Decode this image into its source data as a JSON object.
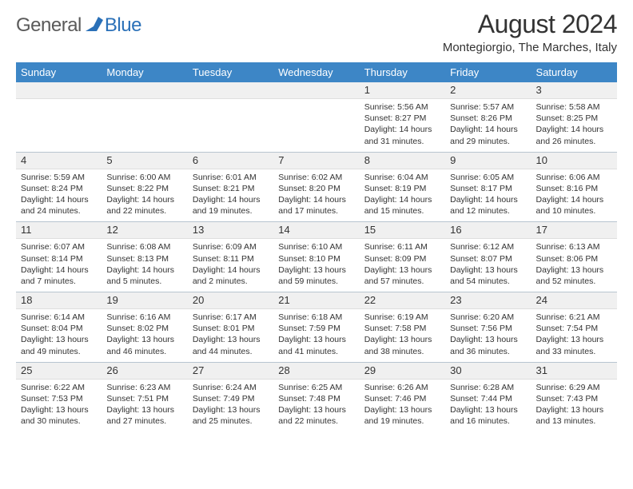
{
  "brand": {
    "text1": "General",
    "text2": "Blue",
    "mark_color": "#2a70b8"
  },
  "title": "August 2024",
  "subtitle": "Montegiorgio, The Marches, Italy",
  "header_bg": "#3d86c6",
  "header_fg": "#ffffff",
  "date_row_bg": "#f0f0f0",
  "rule_color": "#b8c5d0",
  "daynames": [
    "Sunday",
    "Monday",
    "Tuesday",
    "Wednesday",
    "Thursday",
    "Friday",
    "Saturday"
  ],
  "weeks": [
    {
      "dates": [
        "",
        "",
        "",
        "",
        "1",
        "2",
        "3"
      ],
      "cells": [
        null,
        null,
        null,
        null,
        {
          "sunrise": "Sunrise: 5:56 AM",
          "sunset": "Sunset: 8:27 PM",
          "daylight": "Daylight: 14 hours and 31 minutes."
        },
        {
          "sunrise": "Sunrise: 5:57 AM",
          "sunset": "Sunset: 8:26 PM",
          "daylight": "Daylight: 14 hours and 29 minutes."
        },
        {
          "sunrise": "Sunrise: 5:58 AM",
          "sunset": "Sunset: 8:25 PM",
          "daylight": "Daylight: 14 hours and 26 minutes."
        }
      ]
    },
    {
      "dates": [
        "4",
        "5",
        "6",
        "7",
        "8",
        "9",
        "10"
      ],
      "cells": [
        {
          "sunrise": "Sunrise: 5:59 AM",
          "sunset": "Sunset: 8:24 PM",
          "daylight": "Daylight: 14 hours and 24 minutes."
        },
        {
          "sunrise": "Sunrise: 6:00 AM",
          "sunset": "Sunset: 8:22 PM",
          "daylight": "Daylight: 14 hours and 22 minutes."
        },
        {
          "sunrise": "Sunrise: 6:01 AM",
          "sunset": "Sunset: 8:21 PM",
          "daylight": "Daylight: 14 hours and 19 minutes."
        },
        {
          "sunrise": "Sunrise: 6:02 AM",
          "sunset": "Sunset: 8:20 PM",
          "daylight": "Daylight: 14 hours and 17 minutes."
        },
        {
          "sunrise": "Sunrise: 6:04 AM",
          "sunset": "Sunset: 8:19 PM",
          "daylight": "Daylight: 14 hours and 15 minutes."
        },
        {
          "sunrise": "Sunrise: 6:05 AM",
          "sunset": "Sunset: 8:17 PM",
          "daylight": "Daylight: 14 hours and 12 minutes."
        },
        {
          "sunrise": "Sunrise: 6:06 AM",
          "sunset": "Sunset: 8:16 PM",
          "daylight": "Daylight: 14 hours and 10 minutes."
        }
      ]
    },
    {
      "dates": [
        "11",
        "12",
        "13",
        "14",
        "15",
        "16",
        "17"
      ],
      "cells": [
        {
          "sunrise": "Sunrise: 6:07 AM",
          "sunset": "Sunset: 8:14 PM",
          "daylight": "Daylight: 14 hours and 7 minutes."
        },
        {
          "sunrise": "Sunrise: 6:08 AM",
          "sunset": "Sunset: 8:13 PM",
          "daylight": "Daylight: 14 hours and 5 minutes."
        },
        {
          "sunrise": "Sunrise: 6:09 AM",
          "sunset": "Sunset: 8:11 PM",
          "daylight": "Daylight: 14 hours and 2 minutes."
        },
        {
          "sunrise": "Sunrise: 6:10 AM",
          "sunset": "Sunset: 8:10 PM",
          "daylight": "Daylight: 13 hours and 59 minutes."
        },
        {
          "sunrise": "Sunrise: 6:11 AM",
          "sunset": "Sunset: 8:09 PM",
          "daylight": "Daylight: 13 hours and 57 minutes."
        },
        {
          "sunrise": "Sunrise: 6:12 AM",
          "sunset": "Sunset: 8:07 PM",
          "daylight": "Daylight: 13 hours and 54 minutes."
        },
        {
          "sunrise": "Sunrise: 6:13 AM",
          "sunset": "Sunset: 8:06 PM",
          "daylight": "Daylight: 13 hours and 52 minutes."
        }
      ]
    },
    {
      "dates": [
        "18",
        "19",
        "20",
        "21",
        "22",
        "23",
        "24"
      ],
      "cells": [
        {
          "sunrise": "Sunrise: 6:14 AM",
          "sunset": "Sunset: 8:04 PM",
          "daylight": "Daylight: 13 hours and 49 minutes."
        },
        {
          "sunrise": "Sunrise: 6:16 AM",
          "sunset": "Sunset: 8:02 PM",
          "daylight": "Daylight: 13 hours and 46 minutes."
        },
        {
          "sunrise": "Sunrise: 6:17 AM",
          "sunset": "Sunset: 8:01 PM",
          "daylight": "Daylight: 13 hours and 44 minutes."
        },
        {
          "sunrise": "Sunrise: 6:18 AM",
          "sunset": "Sunset: 7:59 PM",
          "daylight": "Daylight: 13 hours and 41 minutes."
        },
        {
          "sunrise": "Sunrise: 6:19 AM",
          "sunset": "Sunset: 7:58 PM",
          "daylight": "Daylight: 13 hours and 38 minutes."
        },
        {
          "sunrise": "Sunrise: 6:20 AM",
          "sunset": "Sunset: 7:56 PM",
          "daylight": "Daylight: 13 hours and 36 minutes."
        },
        {
          "sunrise": "Sunrise: 6:21 AM",
          "sunset": "Sunset: 7:54 PM",
          "daylight": "Daylight: 13 hours and 33 minutes."
        }
      ]
    },
    {
      "dates": [
        "25",
        "26",
        "27",
        "28",
        "29",
        "30",
        "31"
      ],
      "cells": [
        {
          "sunrise": "Sunrise: 6:22 AM",
          "sunset": "Sunset: 7:53 PM",
          "daylight": "Daylight: 13 hours and 30 minutes."
        },
        {
          "sunrise": "Sunrise: 6:23 AM",
          "sunset": "Sunset: 7:51 PM",
          "daylight": "Daylight: 13 hours and 27 minutes."
        },
        {
          "sunrise": "Sunrise: 6:24 AM",
          "sunset": "Sunset: 7:49 PM",
          "daylight": "Daylight: 13 hours and 25 minutes."
        },
        {
          "sunrise": "Sunrise: 6:25 AM",
          "sunset": "Sunset: 7:48 PM",
          "daylight": "Daylight: 13 hours and 22 minutes."
        },
        {
          "sunrise": "Sunrise: 6:26 AM",
          "sunset": "Sunset: 7:46 PM",
          "daylight": "Daylight: 13 hours and 19 minutes."
        },
        {
          "sunrise": "Sunrise: 6:28 AM",
          "sunset": "Sunset: 7:44 PM",
          "daylight": "Daylight: 13 hours and 16 minutes."
        },
        {
          "sunrise": "Sunrise: 6:29 AM",
          "sunset": "Sunset: 7:43 PM",
          "daylight": "Daylight: 13 hours and 13 minutes."
        }
      ]
    }
  ]
}
